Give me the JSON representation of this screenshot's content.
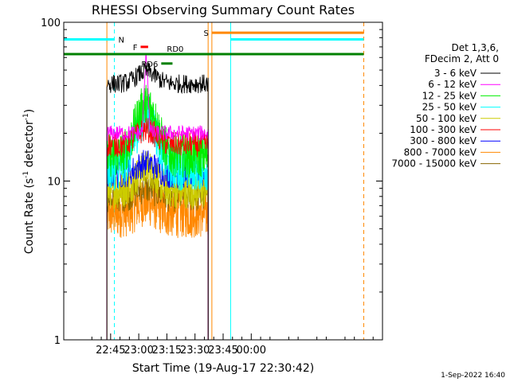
{
  "chart_data": {
    "type": "line",
    "title": "RHESSI Observing Summary Count Rates",
    "xlabel": "Start Time (19-Aug-17 22:30:42)",
    "ylabel": "Count Rate (s",
    "ylabel_sup": "-1",
    "ylabel_mid": " detector",
    "ylabel_close": ")",
    "yscale": "log",
    "ylim": [
      1,
      100
    ],
    "xlim_min": [
      -10,
      160
    ],
    "x_ticks": [
      {
        "t": 15,
        "label": "22:45"
      },
      {
        "t": 30,
        "label": "23:00"
      },
      {
        "t": 45,
        "label": "23:15"
      },
      {
        "t": 60,
        "label": "23:30"
      },
      {
        "t": 75,
        "label": "23:45"
      },
      {
        "t": 90,
        "label": "00:00"
      }
    ],
    "y_ticks": [
      {
        "v": 1,
        "label": "1"
      },
      {
        "v": 10,
        "label": "10"
      },
      {
        "v": 100,
        "label": "100"
      }
    ],
    "legend_header": [
      "Det 1,3,6,",
      "FDecim 2, Att 0"
    ],
    "series": [
      {
        "name": "3 - 6 keV",
        "color": "#000000",
        "level": 41,
        "noise": 0.06,
        "peak": 49
      },
      {
        "name": "6 - 12 keV",
        "color": "#ff00ff",
        "level": 20,
        "noise": 0.05,
        "peak": 58
      },
      {
        "name": "12 - 25 keV",
        "color": "#00ee00",
        "level": 14.5,
        "noise": 0.14,
        "peak": 30
      },
      {
        "name": "25 - 50 keV",
        "color": "#00ffff",
        "level": 12,
        "noise": 0.14,
        "peak": 26
      },
      {
        "name": "50 - 100 keV",
        "color": "#cccc00",
        "level": 8.8,
        "noise": 0.12,
        "peak": 12
      },
      {
        "name": "100 - 300 keV",
        "color": "#ff0000",
        "level": 17,
        "noise": 0.08,
        "peak": 21
      },
      {
        "name": "300 - 800 keV",
        "color": "#0000ff",
        "level": 11,
        "noise": 0.09,
        "peak": 13
      },
      {
        "name": "800 - 7000 keV",
        "color": "#ff8800",
        "level": 6.3,
        "noise": 0.16,
        "peak": 7.5
      },
      {
        "name": "7000 - 15000 keV",
        "color": "#886600",
        "level": 8,
        "noise": 0.1,
        "peak": 9
      }
    ],
    "data_start_min": 13,
    "data_end_min": 67,
    "flare_peak_min": 34,
    "flag_bars": [
      {
        "label": "N",
        "color": "#00ffff",
        "t0": -10,
        "t1": 17,
        "v": 78
      },
      {
        "label": "S",
        "color": "#ff8800",
        "t0": 69,
        "t1": 150,
        "v": 86
      },
      {
        "label": "",
        "color": "#00ffff",
        "t0": 79,
        "t1": 150,
        "v": 78
      },
      {
        "label": "F",
        "color": "#ff0000",
        "t0": 31,
        "t1": 35,
        "v": 70
      },
      {
        "label": "RD0",
        "color": "#008000",
        "t0": -10,
        "t1": 150,
        "v": 63
      },
      {
        "label": "RD6",
        "color": "#008000",
        "t0": 42,
        "t1": 48,
        "v": 55
      }
    ],
    "vertical_markers": [
      {
        "t": -10,
        "color": "#00ffff",
        "dash": false
      },
      {
        "t": 17,
        "color": "#00ffff",
        "dash": true
      },
      {
        "t": 13,
        "color": "#ff8800",
        "dash": false
      },
      {
        "t": 67,
        "color": "#ff8800",
        "dash": false
      },
      {
        "t": 69,
        "color": "#ff8800",
        "dash": false
      },
      {
        "t": 79,
        "color": "#00ffff",
        "dash": false
      },
      {
        "t": 150,
        "color": "#ff8800",
        "dash": true
      }
    ]
  },
  "timestamp": "1-Sep-2022 16:40"
}
